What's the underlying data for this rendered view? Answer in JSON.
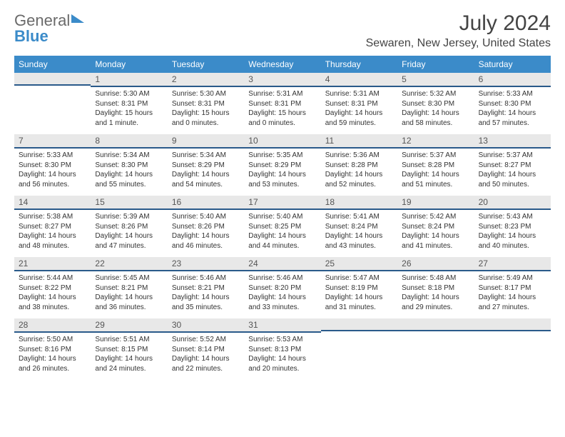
{
  "logo": {
    "part1": "General",
    "part2": "Blue"
  },
  "title": "July 2024",
  "location": "Sewaren, New Jersey, United States",
  "dayHeaders": [
    "Sunday",
    "Monday",
    "Tuesday",
    "Wednesday",
    "Thursday",
    "Friday",
    "Saturday"
  ],
  "colors": {
    "headerBg": "#3b8bc9",
    "dayNumBg": "#e8e8e8",
    "dayNumBorder": "#2a5a8a",
    "text": "#333333",
    "logoGray": "#6a6a6a",
    "logoBlue": "#3b8bc9"
  },
  "weeks": [
    [
      {
        "num": "",
        "sunrise": "",
        "sunset": "",
        "daylight": ""
      },
      {
        "num": "1",
        "sunrise": "Sunrise: 5:30 AM",
        "sunset": "Sunset: 8:31 PM",
        "daylight": "Daylight: 15 hours and 1 minute."
      },
      {
        "num": "2",
        "sunrise": "Sunrise: 5:30 AM",
        "sunset": "Sunset: 8:31 PM",
        "daylight": "Daylight: 15 hours and 0 minutes."
      },
      {
        "num": "3",
        "sunrise": "Sunrise: 5:31 AM",
        "sunset": "Sunset: 8:31 PM",
        "daylight": "Daylight: 15 hours and 0 minutes."
      },
      {
        "num": "4",
        "sunrise": "Sunrise: 5:31 AM",
        "sunset": "Sunset: 8:31 PM",
        "daylight": "Daylight: 14 hours and 59 minutes."
      },
      {
        "num": "5",
        "sunrise": "Sunrise: 5:32 AM",
        "sunset": "Sunset: 8:30 PM",
        "daylight": "Daylight: 14 hours and 58 minutes."
      },
      {
        "num": "6",
        "sunrise": "Sunrise: 5:33 AM",
        "sunset": "Sunset: 8:30 PM",
        "daylight": "Daylight: 14 hours and 57 minutes."
      }
    ],
    [
      {
        "num": "7",
        "sunrise": "Sunrise: 5:33 AM",
        "sunset": "Sunset: 8:30 PM",
        "daylight": "Daylight: 14 hours and 56 minutes."
      },
      {
        "num": "8",
        "sunrise": "Sunrise: 5:34 AM",
        "sunset": "Sunset: 8:30 PM",
        "daylight": "Daylight: 14 hours and 55 minutes."
      },
      {
        "num": "9",
        "sunrise": "Sunrise: 5:34 AM",
        "sunset": "Sunset: 8:29 PM",
        "daylight": "Daylight: 14 hours and 54 minutes."
      },
      {
        "num": "10",
        "sunrise": "Sunrise: 5:35 AM",
        "sunset": "Sunset: 8:29 PM",
        "daylight": "Daylight: 14 hours and 53 minutes."
      },
      {
        "num": "11",
        "sunrise": "Sunrise: 5:36 AM",
        "sunset": "Sunset: 8:28 PM",
        "daylight": "Daylight: 14 hours and 52 minutes."
      },
      {
        "num": "12",
        "sunrise": "Sunrise: 5:37 AM",
        "sunset": "Sunset: 8:28 PM",
        "daylight": "Daylight: 14 hours and 51 minutes."
      },
      {
        "num": "13",
        "sunrise": "Sunrise: 5:37 AM",
        "sunset": "Sunset: 8:27 PM",
        "daylight": "Daylight: 14 hours and 50 minutes."
      }
    ],
    [
      {
        "num": "14",
        "sunrise": "Sunrise: 5:38 AM",
        "sunset": "Sunset: 8:27 PM",
        "daylight": "Daylight: 14 hours and 48 minutes."
      },
      {
        "num": "15",
        "sunrise": "Sunrise: 5:39 AM",
        "sunset": "Sunset: 8:26 PM",
        "daylight": "Daylight: 14 hours and 47 minutes."
      },
      {
        "num": "16",
        "sunrise": "Sunrise: 5:40 AM",
        "sunset": "Sunset: 8:26 PM",
        "daylight": "Daylight: 14 hours and 46 minutes."
      },
      {
        "num": "17",
        "sunrise": "Sunrise: 5:40 AM",
        "sunset": "Sunset: 8:25 PM",
        "daylight": "Daylight: 14 hours and 44 minutes."
      },
      {
        "num": "18",
        "sunrise": "Sunrise: 5:41 AM",
        "sunset": "Sunset: 8:24 PM",
        "daylight": "Daylight: 14 hours and 43 minutes."
      },
      {
        "num": "19",
        "sunrise": "Sunrise: 5:42 AM",
        "sunset": "Sunset: 8:24 PM",
        "daylight": "Daylight: 14 hours and 41 minutes."
      },
      {
        "num": "20",
        "sunrise": "Sunrise: 5:43 AM",
        "sunset": "Sunset: 8:23 PM",
        "daylight": "Daylight: 14 hours and 40 minutes."
      }
    ],
    [
      {
        "num": "21",
        "sunrise": "Sunrise: 5:44 AM",
        "sunset": "Sunset: 8:22 PM",
        "daylight": "Daylight: 14 hours and 38 minutes."
      },
      {
        "num": "22",
        "sunrise": "Sunrise: 5:45 AM",
        "sunset": "Sunset: 8:21 PM",
        "daylight": "Daylight: 14 hours and 36 minutes."
      },
      {
        "num": "23",
        "sunrise": "Sunrise: 5:46 AM",
        "sunset": "Sunset: 8:21 PM",
        "daylight": "Daylight: 14 hours and 35 minutes."
      },
      {
        "num": "24",
        "sunrise": "Sunrise: 5:46 AM",
        "sunset": "Sunset: 8:20 PM",
        "daylight": "Daylight: 14 hours and 33 minutes."
      },
      {
        "num": "25",
        "sunrise": "Sunrise: 5:47 AM",
        "sunset": "Sunset: 8:19 PM",
        "daylight": "Daylight: 14 hours and 31 minutes."
      },
      {
        "num": "26",
        "sunrise": "Sunrise: 5:48 AM",
        "sunset": "Sunset: 8:18 PM",
        "daylight": "Daylight: 14 hours and 29 minutes."
      },
      {
        "num": "27",
        "sunrise": "Sunrise: 5:49 AM",
        "sunset": "Sunset: 8:17 PM",
        "daylight": "Daylight: 14 hours and 27 minutes."
      }
    ],
    [
      {
        "num": "28",
        "sunrise": "Sunrise: 5:50 AM",
        "sunset": "Sunset: 8:16 PM",
        "daylight": "Daylight: 14 hours and 26 minutes."
      },
      {
        "num": "29",
        "sunrise": "Sunrise: 5:51 AM",
        "sunset": "Sunset: 8:15 PM",
        "daylight": "Daylight: 14 hours and 24 minutes."
      },
      {
        "num": "30",
        "sunrise": "Sunrise: 5:52 AM",
        "sunset": "Sunset: 8:14 PM",
        "daylight": "Daylight: 14 hours and 22 minutes."
      },
      {
        "num": "31",
        "sunrise": "Sunrise: 5:53 AM",
        "sunset": "Sunset: 8:13 PM",
        "daylight": "Daylight: 14 hours and 20 minutes."
      },
      {
        "num": "",
        "sunrise": "",
        "sunset": "",
        "daylight": ""
      },
      {
        "num": "",
        "sunrise": "",
        "sunset": "",
        "daylight": ""
      },
      {
        "num": "",
        "sunrise": "",
        "sunset": "",
        "daylight": ""
      }
    ]
  ]
}
